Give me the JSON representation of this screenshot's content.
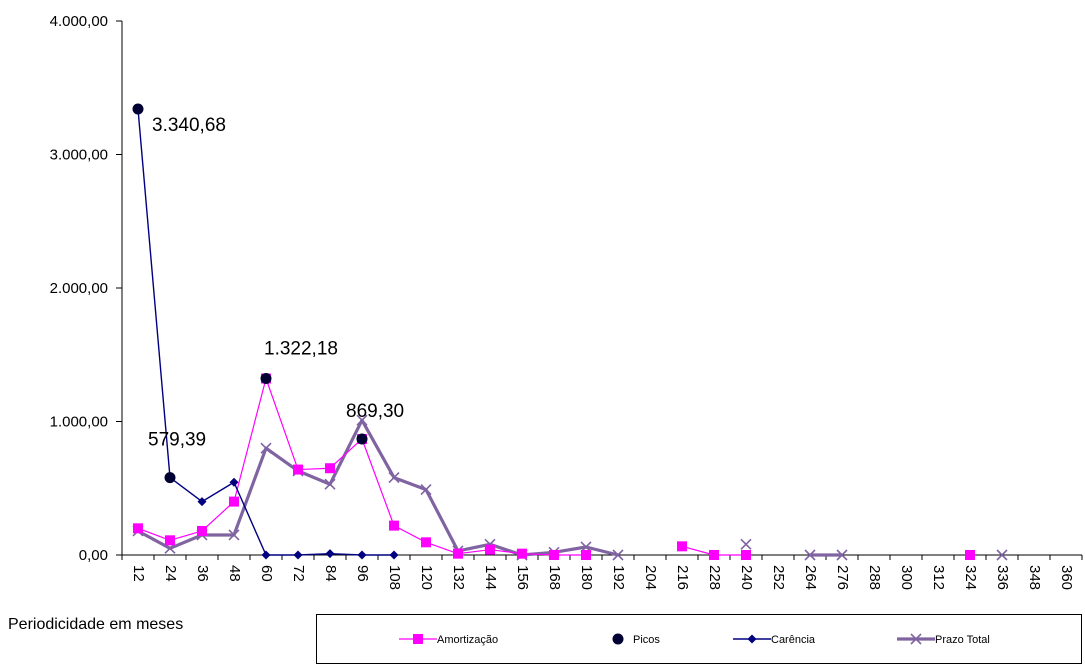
{
  "chart_data": {
    "type": "line",
    "title": "",
    "xlabel": "Periodicidade em meses",
    "ylabel": "",
    "ylim": [
      0,
      4000
    ],
    "yticks": [
      0,
      1000,
      2000,
      3000,
      4000
    ],
    "ytick_labels": [
      "0,00",
      "1.000,00",
      "2.000,00",
      "3.000,00",
      "4.000,00"
    ],
    "categories": [
      "12",
      "24",
      "36",
      "48",
      "60",
      "72",
      "84",
      "96",
      "108",
      "120",
      "132",
      "144",
      "156",
      "168",
      "180",
      "192",
      "204",
      "216",
      "228",
      "240",
      "252",
      "264",
      "276",
      "288",
      "300",
      "312",
      "324",
      "336",
      "348",
      "360"
    ],
    "series": [
      {
        "name": "Amortização",
        "color": "#ff00ff",
        "marker": "square",
        "values": [
          200,
          110,
          180,
          400,
          1322,
          640,
          650,
          869,
          220,
          95,
          10,
          40,
          10,
          0,
          0,
          null,
          null,
          65,
          0,
          0,
          null,
          null,
          null,
          null,
          null,
          null,
          0,
          null,
          null,
          null
        ]
      },
      {
        "name": "Picos",
        "color": "#000033",
        "marker": "circle",
        "values": [
          3340.68,
          579.39,
          null,
          null,
          1322.18,
          null,
          null,
          869.3,
          null,
          null,
          null,
          null,
          null,
          null,
          null,
          null,
          null,
          null,
          null,
          null,
          null,
          null,
          null,
          null,
          null,
          null,
          null,
          null,
          null,
          null
        ]
      },
      {
        "name": "Carência",
        "color": "#000080",
        "marker": "diamond",
        "values": [
          3340,
          580,
          400,
          545,
          0,
          0,
          10,
          0,
          0,
          null,
          null,
          null,
          null,
          null,
          null,
          null,
          null,
          null,
          null,
          null,
          null,
          null,
          null,
          null,
          null,
          null,
          null,
          null,
          null,
          null
        ]
      },
      {
        "name": "Prazo Total",
        "color": "#8064a2",
        "marker": "x",
        "values": [
          180,
          50,
          150,
          150,
          800,
          630,
          530,
          1010,
          580,
          490,
          30,
          80,
          0,
          20,
          60,
          0,
          null,
          null,
          null,
          80,
          null,
          0,
          0,
          null,
          null,
          null,
          null,
          0,
          null,
          null
        ]
      }
    ],
    "annotations": [
      {
        "label": "3.340,68",
        "category": "12",
        "value": 3340.68
      },
      {
        "label": "579,39",
        "category": "24",
        "value": 579.39
      },
      {
        "label": "1.322,18",
        "category": "60",
        "value": 1322.18
      },
      {
        "label": "869,30",
        "category": "96",
        "value": 869.3
      }
    ],
    "grid": false,
    "legend_position": "bottom-right"
  }
}
